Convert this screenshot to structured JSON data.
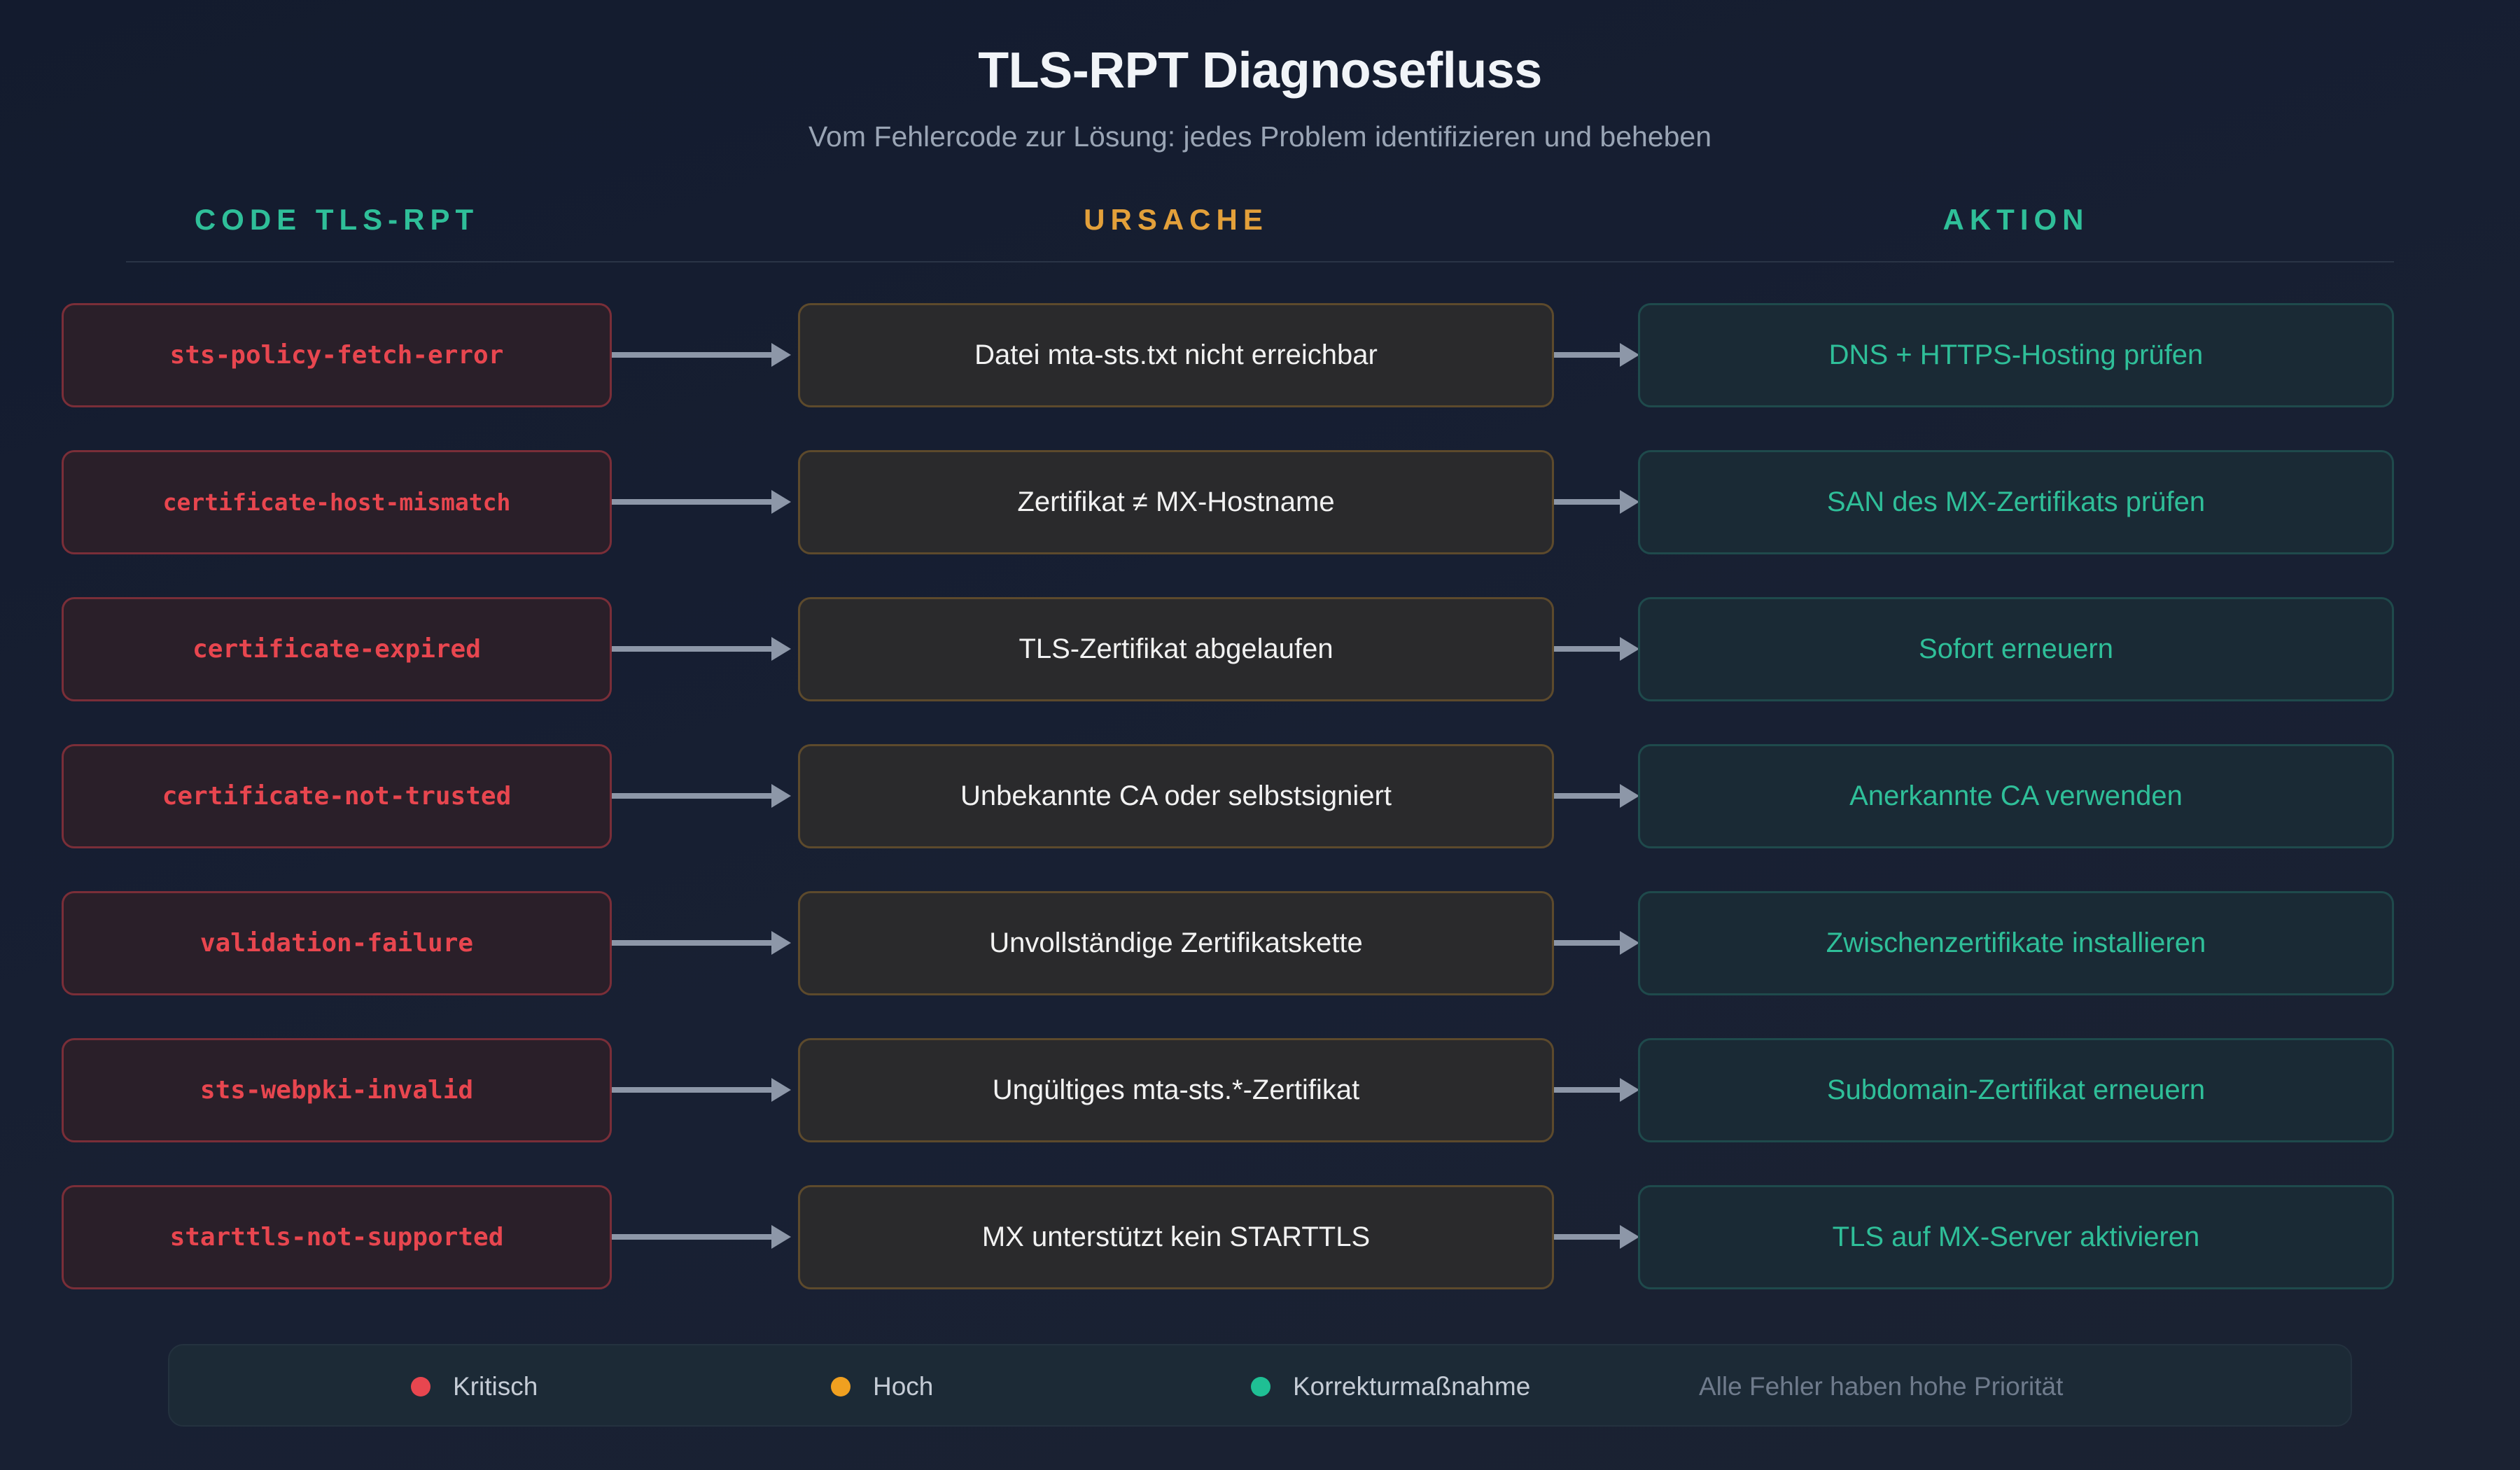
{
  "title": "TLS-RPT Diagnosefluss",
  "subtitle": "Vom Fehlercode zur Lösung: jedes Problem identifizieren und beheben",
  "columns": {
    "code": "CODE TLS-RPT",
    "cause": "URSACHE",
    "action": "AKTION"
  },
  "colors": {
    "critical": "#e8464f",
    "high": "#f0a020",
    "action": "#1fbf94"
  },
  "rows": [
    {
      "code": "sts-policy-fetch-error",
      "cause": "Datei mta-sts.txt nicht erreichbar",
      "action": "DNS + HTTPS-Hosting prüfen"
    },
    {
      "code": "certificate-host-mismatch",
      "cause": "Zertifikat ≠ MX-Hostname",
      "action": "SAN des MX-Zertifikats prüfen"
    },
    {
      "code": "certificate-expired",
      "cause": "TLS-Zertifikat abgelaufen",
      "action": "Sofort erneuern"
    },
    {
      "code": "certificate-not-trusted",
      "cause": "Unbekannte CA oder selbstsigniert",
      "action": "Anerkannte CA verwenden"
    },
    {
      "code": "validation-failure",
      "cause": "Unvollständige Zertifikatskette",
      "action": "Zwischenzertifikate installieren"
    },
    {
      "code": "sts-webpki-invalid",
      "cause": "Ungültiges mta-sts.*-Zertifikat",
      "action": "Subdomain-Zertifikat erneuern"
    },
    {
      "code": "starttls-not-supported",
      "cause": "MX unterstützt kein STARTTLS",
      "action": "TLS auf MX-Server aktivieren"
    }
  ],
  "legend": {
    "critical": "Kritisch",
    "high": "Hoch",
    "corrective": "Korrekturmaßnahme",
    "note": "Alle Fehler haben hohe Priorität"
  }
}
